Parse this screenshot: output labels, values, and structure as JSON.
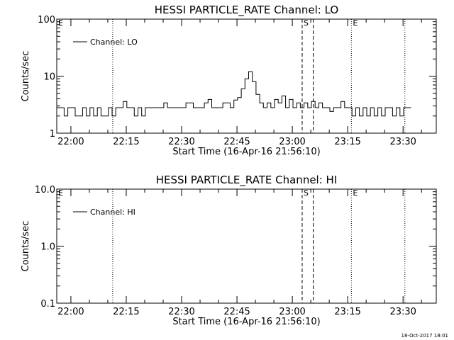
{
  "chart_data": [
    {
      "type": "line",
      "title": "HESSI PARTICLE_RATE Channel: LO",
      "xlabel": "Start Time (16-Apr-16 21:56:10)",
      "ylabel": "Counts/sec",
      "y_scale": "log",
      "ylim": [
        1,
        100
      ],
      "y_ticks": [
        1,
        10,
        100
      ],
      "y_tick_labels": [
        "1",
        "10",
        "100"
      ],
      "xlim": [
        "21:56:10",
        "23:39:00"
      ],
      "x_ticks": [
        "22:00",
        "22:15",
        "22:30",
        "22:45",
        "23:00",
        "23:15",
        "23:30"
      ],
      "grid": false,
      "legend": "top-left",
      "series": [
        {
          "name": "Channel: LO",
          "x": [
            "21:56:10",
            "21:57:10",
            "21:58:10",
            "21:59:10",
            "22:00:10",
            "22:01:10",
            "22:02:10",
            "22:03:10",
            "22:04:10",
            "22:05:10",
            "22:06:10",
            "22:07:10",
            "22:08:10",
            "22:09:10",
            "22:10:10",
            "22:11:10",
            "22:12:10",
            "22:13:10",
            "22:14:10",
            "22:15:10",
            "22:16:10",
            "22:17:10",
            "22:18:10",
            "22:19:10",
            "22:20:10",
            "22:21:10",
            "22:22:10",
            "22:23:10",
            "22:24:10",
            "22:25:10",
            "22:26:10",
            "22:27:10",
            "22:28:10",
            "22:29:10",
            "22:30:10",
            "22:31:10",
            "22:32:10",
            "22:33:10",
            "22:34:10",
            "22:35:10",
            "22:36:10",
            "22:37:10",
            "22:38:10",
            "22:39:10",
            "22:40:10",
            "22:41:10",
            "22:42:10",
            "22:43:10",
            "22:44:10",
            "22:45:10",
            "22:46:10",
            "22:47:10",
            "22:48:10",
            "22:49:10",
            "22:50:10",
            "22:51:10",
            "22:52:10",
            "22:53:10",
            "22:54:10",
            "22:55:10",
            "22:56:10",
            "22:57:10",
            "22:58:10",
            "22:59:10",
            "23:00:10",
            "23:01:10",
            "23:02:10",
            "23:03:10",
            "23:04:10",
            "23:05:10",
            "23:06:10",
            "23:07:10",
            "23:08:10",
            "23:09:10",
            "23:10:10",
            "23:11:10",
            "23:12:10",
            "23:13:10",
            "23:14:10",
            "23:15:10",
            "23:16:10",
            "23:17:10",
            "23:18:10",
            "23:19:10",
            "23:20:10",
            "23:21:10",
            "23:22:10",
            "23:23:10",
            "23:24:10",
            "23:25:10",
            "23:26:10",
            "23:27:10",
            "23:28:10",
            "23:29:10",
            "23:30:10",
            "23:31:10"
          ],
          "values": [
            2.8,
            2.8,
            2.0,
            2.8,
            2.8,
            2.0,
            2.0,
            2.8,
            2.0,
            2.8,
            2.0,
            2.8,
            2.0,
            2.0,
            2.8,
            2.0,
            2.8,
            2.8,
            3.6,
            2.8,
            2.8,
            2.0,
            2.8,
            2.0,
            2.8,
            2.8,
            2.8,
            2.8,
            2.8,
            3.4,
            2.8,
            2.8,
            2.8,
            2.8,
            2.8,
            3.4,
            3.4,
            2.8,
            2.8,
            2.8,
            3.4,
            3.9,
            2.8,
            2.8,
            2.8,
            3.4,
            3.4,
            2.8,
            3.8,
            4.2,
            6.0,
            9.0,
            12.0,
            8.0,
            4.8,
            3.4,
            2.8,
            3.4,
            2.8,
            3.9,
            3.4,
            4.5,
            2.8,
            3.9,
            2.8,
            3.4,
            2.8,
            3.4,
            2.8,
            3.6,
            2.8,
            3.4,
            2.8,
            2.8,
            2.4,
            2.8,
            2.8,
            3.6,
            2.8,
            2.8,
            2.0,
            2.8,
            2.0,
            2.8,
            2.0,
            2.8,
            2.0,
            2.8,
            2.0,
            2.8,
            2.8,
            2.0,
            2.8,
            2.0,
            2.8,
            2.8
          ],
          "color": "#000000"
        }
      ],
      "vertical_lines": [
        {
          "x": "22:11:20",
          "style": "dotted"
        },
        {
          "x": "23:02:40",
          "style": "dashed",
          "label": "S"
        },
        {
          "x": "23:05:40",
          "style": "dashed"
        },
        {
          "x": "23:16:00",
          "style": "dotted",
          "label": "E"
        },
        {
          "x": "23:30:30",
          "style": "dotted"
        }
      ],
      "corner_label": "E"
    },
    {
      "type": "line",
      "title": "HESSI PARTICLE_RATE Channel: HI",
      "xlabel": "Start Time (16-Apr-16 21:56:10)",
      "ylabel": "Counts/sec",
      "y_scale": "log",
      "ylim": [
        0.1,
        10
      ],
      "y_ticks": [
        0.1,
        1,
        10
      ],
      "y_tick_labels": [
        "0.1",
        "1.0",
        "10.0"
      ],
      "xlim": [
        "21:56:10",
        "23:39:00"
      ],
      "x_ticks": [
        "22:00",
        "22:15",
        "22:30",
        "22:45",
        "23:00",
        "23:15",
        "23:30"
      ],
      "grid": false,
      "legend": "top-left",
      "series": [
        {
          "name": "Channel: HI",
          "x": [],
          "values": [],
          "color": "#000000"
        }
      ],
      "vertical_lines": [
        {
          "x": "22:11:20",
          "style": "dotted"
        },
        {
          "x": "23:02:40",
          "style": "dashed",
          "label": "S"
        },
        {
          "x": "23:05:40",
          "style": "dashed"
        },
        {
          "x": "23:16:00",
          "style": "dotted",
          "label": "E"
        },
        {
          "x": "23:30:30",
          "style": "dotted"
        }
      ],
      "corner_label": "E"
    }
  ],
  "footer": {
    "timestamp": "18-Oct-2017 18:01"
  }
}
